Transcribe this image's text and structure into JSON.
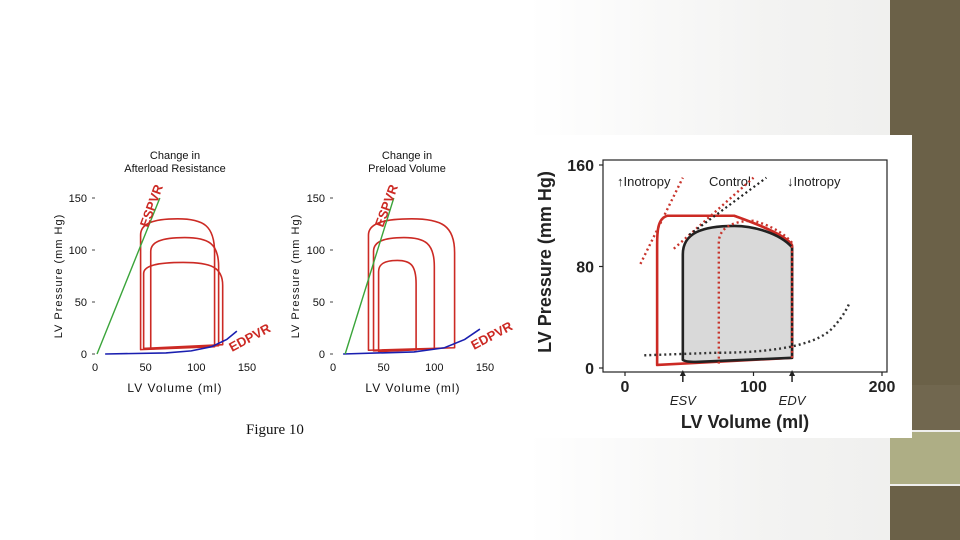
{
  "caption": "Figure 10",
  "colors": {
    "loop": "#cc2a24",
    "espvr": "#3aa43a",
    "edpvr": "#1a1fb0",
    "control": "#222222",
    "dotted": "#c8342c",
    "fill": "#d9d9d9",
    "bar": "#6b6148",
    "bar_light": "#aeae85"
  },
  "chart_data": [
    {
      "type": "line",
      "title_line1": "Change in",
      "title_line2": "Afterload Resistance",
      "xlabel": "LV Volume (ml)",
      "ylabel": "LV Pressure (mm Hg)",
      "xlim": [
        0,
        150
      ],
      "ylim": [
        0,
        150
      ],
      "xticks": [
        "0",
        "50",
        "100",
        "150"
      ],
      "yticks": [
        "0",
        "50",
        "100",
        "150"
      ],
      "espvr_label": "ESPVR",
      "edpvr_label": "EDPVR",
      "espvr": [
        [
          2,
          0
        ],
        [
          64,
          150
        ]
      ],
      "edpvr": [
        [
          10,
          0
        ],
        [
          70,
          1
        ],
        [
          95,
          3
        ],
        [
          115,
          7
        ],
        [
          130,
          14
        ],
        [
          140,
          22
        ]
      ],
      "loops": [
        {
          "esv": 45,
          "edv": 118,
          "peak": 130,
          "end": 7
        },
        {
          "esv": 55,
          "edv": 122,
          "peak": 112,
          "end": 8
        },
        {
          "esv": 48,
          "edv": 126,
          "peak": 88,
          "end": 9
        }
      ]
    },
    {
      "type": "line",
      "title_line1": "Change in",
      "title_line2": "Preload Volume",
      "xlabel": "LV Volume (ml)",
      "ylabel": "LV Pressure (mm Hg)",
      "xlim": [
        0,
        150
      ],
      "ylim": [
        0,
        150
      ],
      "xticks": [
        "0",
        "50",
        "100",
        "150"
      ],
      "yticks": [
        "0",
        "50",
        "100",
        "150"
      ],
      "espvr_label": "ESPVR",
      "edpvr_label": "EDPVR",
      "espvr": [
        [
          12,
          0
        ],
        [
          60,
          150
        ]
      ],
      "edpvr": [
        [
          10,
          0
        ],
        [
          80,
          2
        ],
        [
          110,
          6
        ],
        [
          130,
          14
        ],
        [
          145,
          24
        ]
      ],
      "loops": [
        {
          "esv": 35,
          "edv": 120,
          "peak": 130,
          "end": 6
        },
        {
          "esv": 40,
          "edv": 100,
          "peak": 112,
          "end": 5
        },
        {
          "esv": 45,
          "edv": 82,
          "peak": 90,
          "end": 4
        }
      ]
    },
    {
      "type": "line",
      "xlabel": "LV Volume (ml)",
      "ylabel": "LV Pressure (mm Hg)",
      "xlim": [
        0,
        200
      ],
      "ylim": [
        0,
        160
      ],
      "xticks": [
        "0",
        "100",
        "200"
      ],
      "yticks": [
        "0",
        "80",
        "160"
      ],
      "legend": [
        "↑Inotropy",
        "Control",
        "↓Inotropy"
      ],
      "markers": [
        "ESV",
        "EDV"
      ],
      "esv_value": 45,
      "edv_value": 130,
      "control_loop": {
        "esv": 45,
        "edv": 130,
        "peak": 112,
        "end": 8
      },
      "increased_inotropy_loop": {
        "esv": 25,
        "edv": 130,
        "peak": 118,
        "end": 8
      },
      "decreased_inotropy_loop": {
        "esv": 73,
        "edv": 130,
        "peak": 116,
        "end": 8
      }
    }
  ]
}
